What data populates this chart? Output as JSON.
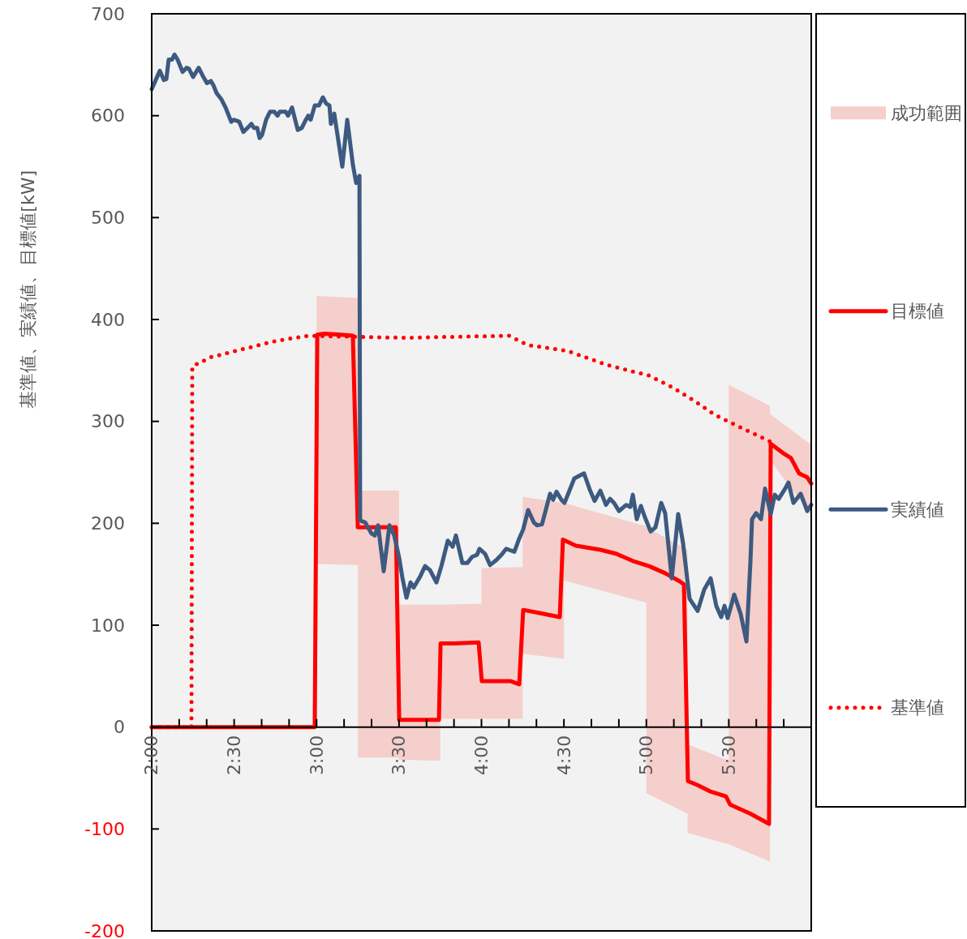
{
  "chart_data": {
    "type": "line",
    "ylabel": "基準値、実績値、目標値[kW]",
    "legend": "right",
    "xlim": [
      2,
      6
    ],
    "ylim": [
      -200,
      700
    ],
    "xticks": [
      {
        "value": 2,
        "label": "2:00"
      },
      {
        "value": 2.1667,
        "label": null
      },
      {
        "value": 2.3333,
        "label": null
      },
      {
        "value": 2.5,
        "label": "2:30"
      },
      {
        "value": 2.6667,
        "label": null
      },
      {
        "value": 2.8333,
        "label": null
      },
      {
        "value": 3,
        "label": "3:00"
      },
      {
        "value": 3.1667,
        "label": null
      },
      {
        "value": 3.3333,
        "label": null
      },
      {
        "value": 3.5,
        "label": "3:30"
      },
      {
        "value": 3.6667,
        "label": null
      },
      {
        "value": 3.8333,
        "label": null
      },
      {
        "value": 4,
        "label": "4:00"
      },
      {
        "value": 4.1667,
        "label": null
      },
      {
        "value": 4.3333,
        "label": null
      },
      {
        "value": 4.5,
        "label": "4:30"
      },
      {
        "value": 4.6667,
        "label": null
      },
      {
        "value": 4.8333,
        "label": null
      },
      {
        "value": 5,
        "label": "5:00"
      },
      {
        "value": 5.1667,
        "label": null
      },
      {
        "value": 5.3333,
        "label": null
      },
      {
        "value": 5.5,
        "label": "5:30"
      },
      {
        "value": 5.6667,
        "label": null
      },
      {
        "value": 5.8333,
        "label": null
      },
      {
        "value": 6,
        "label": null
      }
    ],
    "yticks": [
      -200,
      -100,
      0,
      100,
      200,
      300,
      400,
      500,
      600,
      700
    ],
    "series": [
      {
        "name": "成功範囲",
        "type": "line",
        "color": "#f5cfcb",
        "x": [
          3.0,
          3.25,
          3.25,
          3.5,
          3.5,
          3.75,
          3.75,
          4.0,
          4.0,
          4.25,
          4.25,
          4.5,
          4.5,
          5.0,
          5.0,
          5.25,
          5.25,
          5.5,
          5.5,
          5.75,
          5.75,
          6.0
        ],
        "values": [
          null,
          null,
          null,
          null,
          null,
          null,
          null,
          null,
          null,
          null,
          null,
          null,
          null,
          null,
          null,
          null,
          null,
          null,
          null,
          null,
          null,
          null
        ],
        "upper": [
          423,
          421,
          232,
          232,
          120,
          120,
          120,
          121,
          156,
          157,
          226,
          220,
          220,
          197,
          196,
          174,
          -17,
          -33,
          336,
          315,
          307,
          277
        ],
        "lower": [
          160,
          159,
          -30,
          -30,
          -32,
          -33,
          8,
          8,
          8,
          8,
          72,
          67,
          144,
          122,
          -65,
          -85,
          -104,
          -115,
          -115,
          -132,
          262,
          208
        ]
      },
      {
        "name": "目標値",
        "type": "line",
        "color": "#ff0000",
        "line_style": "solid",
        "x": [
          2.0,
          2.989,
          3.004,
          3.048,
          3.146,
          3.22,
          3.25,
          3.481,
          3.501,
          3.599,
          3.742,
          3.752,
          3.835,
          3.983,
          4.002,
          4.13,
          4.179,
          4.229,
          4.253,
          4.352,
          4.475,
          4.494,
          4.573,
          4.721,
          4.819,
          4.918,
          5.016,
          5.114,
          5.203,
          5.228,
          5.252,
          5.311,
          5.385,
          5.483,
          5.508,
          5.631,
          5.744,
          5.754,
          5.828,
          5.877,
          5.926,
          5.976,
          6.0
        ],
        "values": [
          0,
          0,
          385,
          386,
          385,
          384,
          196,
          196,
          7,
          7,
          7,
          82,
          82,
          83,
          45,
          45,
          45,
          42,
          115,
          112,
          108,
          184,
          178,
          174,
          170,
          163,
          158,
          151,
          143,
          140,
          -53,
          -57,
          -63,
          -68,
          -76,
          -85,
          -95,
          278,
          269,
          264,
          249,
          245,
          239
        ]
      },
      {
        "name": "実績値",
        "type": "line",
        "color": "#3d5a80",
        "line_style": "solid",
        "x": [
          2.0,
          2.049,
          2.074,
          2.089,
          2.103,
          2.123,
          2.138,
          2.157,
          2.187,
          2.212,
          2.226,
          2.251,
          2.285,
          2.31,
          2.335,
          2.359,
          2.374,
          2.394,
          2.423,
          2.448,
          2.482,
          2.497,
          2.531,
          2.556,
          2.581,
          2.605,
          2.62,
          2.64,
          2.654,
          2.669,
          2.694,
          2.718,
          2.743,
          2.763,
          2.777,
          2.812,
          2.827,
          2.851,
          2.886,
          2.91,
          2.935,
          2.95,
          2.964,
          2.989,
          3.014,
          3.038,
          3.058,
          3.078,
          3.087,
          3.107,
          3.156,
          3.186,
          3.22,
          3.24,
          3.26,
          3.264,
          3.274,
          3.294,
          3.333,
          3.353,
          3.373,
          3.407,
          3.442,
          3.471,
          3.501,
          3.52,
          3.545,
          3.57,
          3.589,
          3.629,
          3.658,
          3.688,
          3.727,
          3.757,
          3.796,
          3.825,
          3.845,
          3.884,
          3.914,
          3.943,
          3.973,
          3.988,
          4.022,
          4.052,
          4.091,
          4.121,
          4.15,
          4.199,
          4.229,
          4.253,
          4.283,
          4.317,
          4.337,
          4.367,
          4.416,
          4.435,
          4.455,
          4.485,
          4.504,
          4.563,
          4.622,
          4.657,
          4.686,
          4.721,
          4.755,
          4.78,
          4.804,
          4.834,
          4.878,
          4.903,
          4.918,
          4.942,
          4.967,
          4.991,
          5.026,
          5.055,
          5.09,
          5.114,
          5.154,
          5.193,
          5.223,
          5.262,
          5.311,
          5.351,
          5.39,
          5.424,
          5.454,
          5.474,
          5.493,
          5.533,
          5.572,
          5.607,
          5.631,
          5.641,
          5.666,
          5.695,
          5.72,
          5.754,
          5.779,
          5.803,
          5.838,
          5.862,
          5.892,
          5.936,
          5.976,
          6.0
        ],
        "values": [
          626,
          644,
          635,
          636,
          655,
          655,
          660,
          655,
          643,
          647,
          646,
          638,
          647,
          639,
          632,
          634,
          630,
          622,
          616,
          608,
          594,
          596,
          594,
          584,
          588,
          592,
          588,
          588,
          578,
          581,
          596,
          604,
          604,
          600,
          604,
          604,
          600,
          608,
          586,
          588,
          596,
          600,
          596,
          610,
          610,
          618,
          612,
          610,
          592,
          602,
          550,
          596,
          552,
          534,
          541,
          204,
          202,
          201,
          190,
          188,
          198,
          153,
          198,
          188,
          166,
          147,
          127,
          142,
          137,
          148,
          158,
          154,
          142,
          158,
          183,
          177,
          188,
          161,
          161,
          167,
          169,
          175,
          170,
          159,
          164,
          169,
          175,
          172,
          185,
          194,
          213,
          201,
          198,
          199,
          229,
          223,
          231,
          223,
          220,
          244,
          249,
          233,
          222,
          232,
          218,
          224,
          220,
          212,
          218,
          216,
          228,
          204,
          217,
          206,
          192,
          196,
          220,
          210,
          146,
          209,
          180,
          126,
          114,
          135,
          146,
          119,
          108,
          119,
          107,
          130,
          111,
          84,
          162,
          204,
          210,
          204,
          234,
          209,
          228,
          224,
          233,
          240,
          220,
          229,
          212,
          218
        ]
      },
      {
        "name": "基準値",
        "type": "line",
        "color": "#ff0000",
        "line_style": "dotted",
        "x": [
          2.0,
          2.241,
          2.246,
          2.359,
          2.556,
          2.753,
          2.95,
          3.245,
          3.54,
          3.835,
          4.17,
          4.278,
          4.524,
          4.77,
          5.016,
          5.164,
          5.311,
          5.409,
          5.508,
          5.754
        ],
        "values": [
          0,
          0,
          354,
          363,
          371,
          379,
          384,
          383,
          382,
          383,
          384,
          375,
          369,
          355,
          345,
          333,
          318,
          307,
          299,
          280
        ]
      }
    ]
  }
}
